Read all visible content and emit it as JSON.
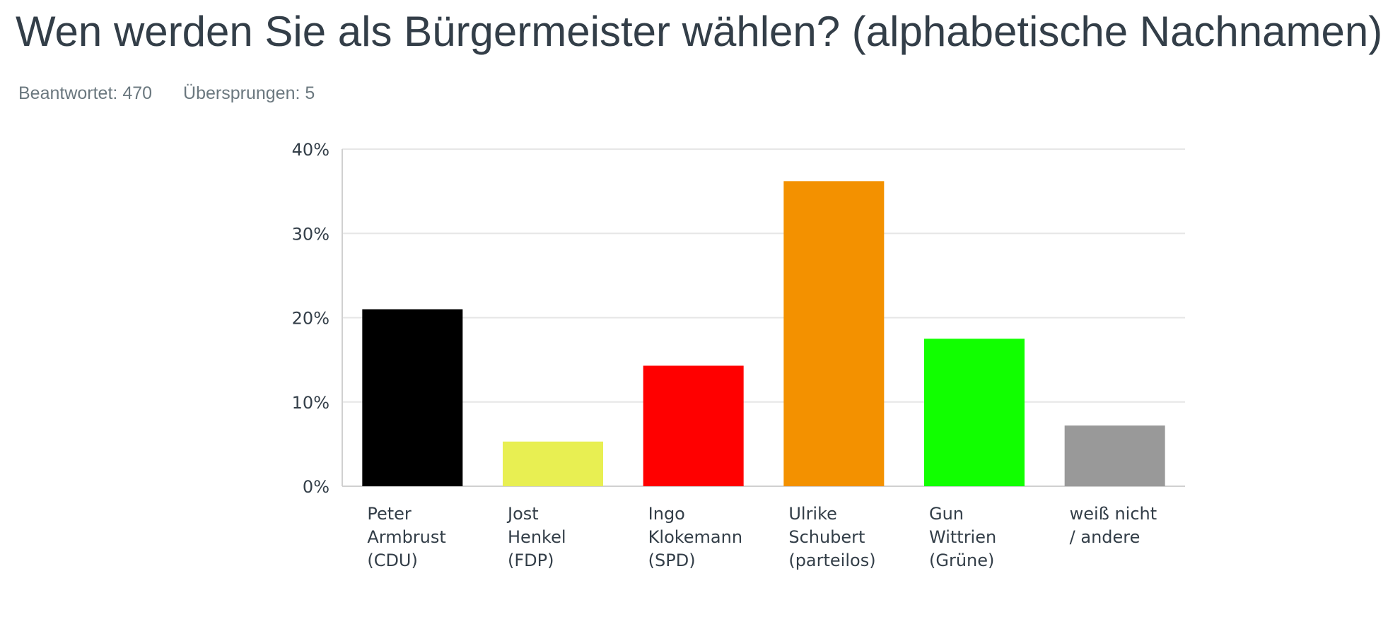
{
  "title": "Wen werden Sie als Bürgermeister wählen? (alphabetische Nachnamen)",
  "stats": {
    "answered_label": "Beantwortet:",
    "answered_value": "470",
    "skipped_label": "Übersprungen:",
    "skipped_value": "5"
  },
  "chart_data": {
    "type": "bar",
    "categories": [
      [
        "Peter",
        "Armbrust",
        "(CDU)"
      ],
      [
        "Jost",
        "Henkel",
        "(FDP)"
      ],
      [
        "Ingo",
        "Klokemann",
        "(SPD)"
      ],
      [
        "Ulrike",
        "Schubert",
        "(parteilos)"
      ],
      [
        "Gun",
        "Wittrien",
        "(Grüne)"
      ],
      [
        "weiß nicht",
        "/ andere"
      ]
    ],
    "values": [
      21,
      5.3,
      14.3,
      36.2,
      17.5,
      7.2
    ],
    "colors": [
      "#000000",
      "#e8ef52",
      "#ff0000",
      "#f39100",
      "#11ff00",
      "#999999"
    ],
    "ylim": [
      0,
      40
    ],
    "yticks": [
      0,
      10,
      20,
      30,
      40
    ],
    "ytick_labels": [
      "0%",
      "10%",
      "20%",
      "30%",
      "40%"
    ],
    "grid": true,
    "xlabel": "",
    "ylabel": ""
  }
}
